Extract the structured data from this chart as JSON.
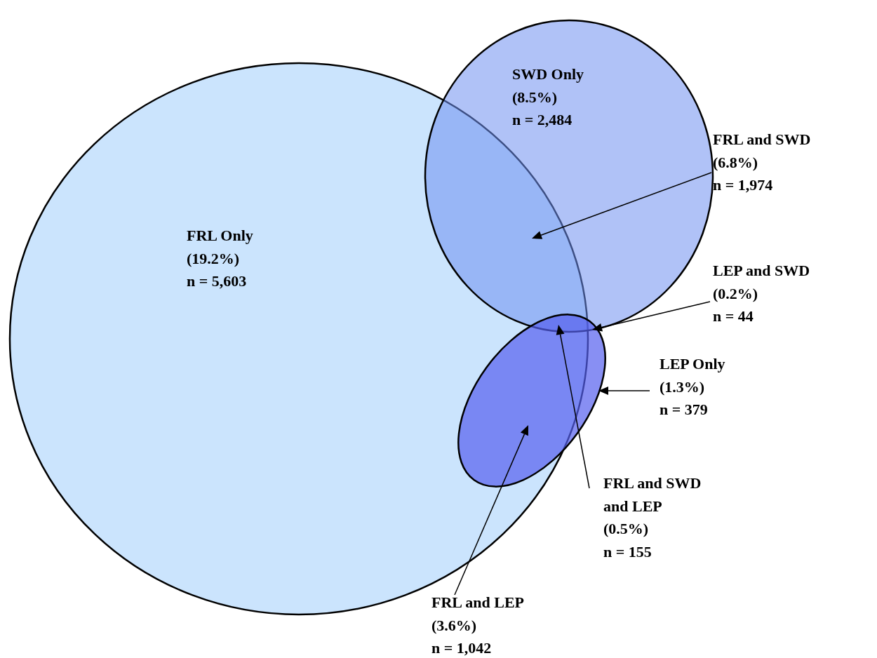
{
  "chart_data": {
    "type": "other",
    "categories": [
      "FRL Only",
      "SWD Only",
      "FRL and SWD",
      "LEP and SWD",
      "LEP Only",
      "FRL and SWD\nand LEP",
      "FRL and LEP"
    ],
    "values": [
      5603,
      2484,
      1974,
      44,
      379,
      155,
      1042
    ],
    "value_labels": [
      "(19.2%)\nn = 5,603",
      "(8.5%)\nn = 2,484",
      "(6.8%)\nn = 1,974",
      "(0.2%)\nn = 44",
      "(1.3%)\nn = 379",
      "(0.5%)\nn = 155",
      "(3.6%)\nn = 1,042"
    ]
  }
}
